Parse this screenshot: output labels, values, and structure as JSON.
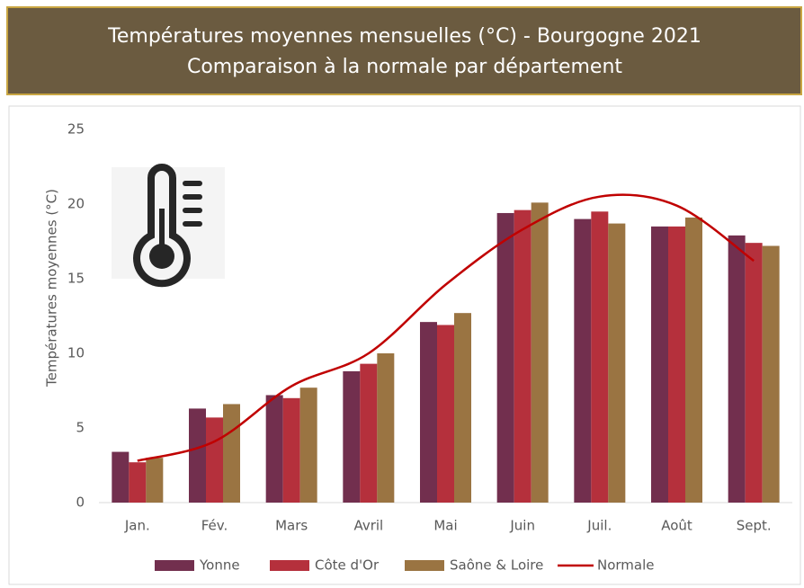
{
  "chart_data": {
    "type": "bar",
    "title": "Températures moyennes mensuelles (°C) - Bourgogne 2021",
    "subtitle": "Comparaison à la normale par département",
    "y_label": "Températures moyennes (°C)",
    "categories": [
      "Jan.",
      "Fév.",
      "Mars",
      "Avril",
      "Mai",
      "Juin",
      "Juil.",
      "Août",
      "Sept."
    ],
    "series": [
      {
        "name": "Yonne",
        "color": "#722f4e",
        "values": [
          3.4,
          6.3,
          7.2,
          8.8,
          12.1,
          19.4,
          19.0,
          18.5,
          17.9
        ]
      },
      {
        "name": "Côte d'Or",
        "color": "#b5303c",
        "values": [
          2.7,
          5.7,
          7.0,
          9.3,
          11.9,
          19.6,
          19.5,
          18.5,
          17.4
        ]
      },
      {
        "name": "Saône & Loire",
        "color": "#9a7442",
        "values": [
          3.0,
          6.6,
          7.7,
          10.0,
          12.7,
          20.1,
          18.7,
          19.1,
          17.2
        ]
      },
      {
        "name": "Normale",
        "type": "line",
        "color": "#c00000",
        "values": [
          2.8,
          4.1,
          7.8,
          10.0,
          14.6,
          18.3,
          20.5,
          19.9,
          16.2
        ]
      }
    ],
    "ylim": [
      0,
      25
    ],
    "yticks": [
      0,
      5,
      10,
      15,
      20,
      25
    ],
    "grid": false,
    "legend": "bottom"
  }
}
